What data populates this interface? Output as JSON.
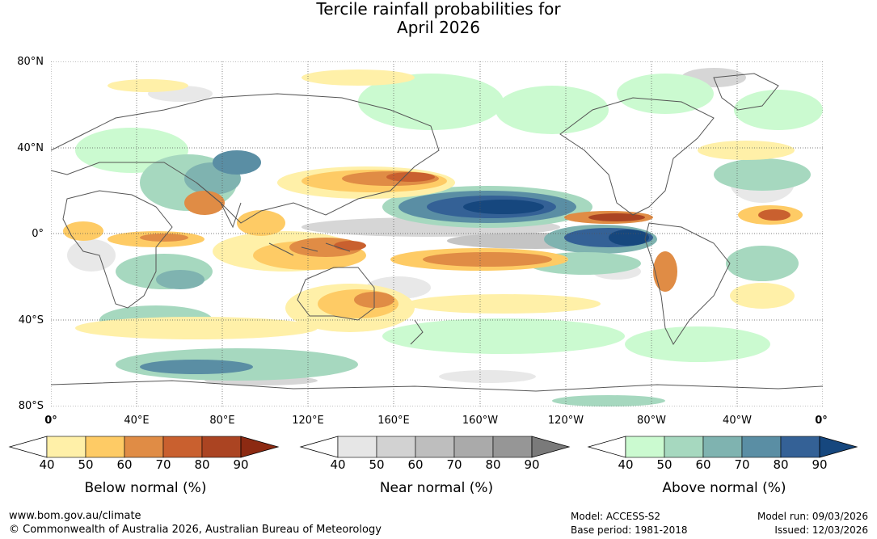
{
  "title": {
    "line1": "Tercile rainfall probabilities for",
    "line2": "April 2026"
  },
  "map": {
    "name": "Tercile rainfall probabilities world map",
    "lat_labels": [
      "80°N",
      "40°N",
      "0°",
      "40°S",
      "80°S"
    ],
    "lon_labels": [
      "0°",
      "40°E",
      "80°E",
      "120°E",
      "160°E",
      "160°W",
      "120°W",
      "80°W",
      "40°W",
      "0°"
    ],
    "colors": {
      "below": [
        "#fff0a8",
        "#fecb65",
        "#e08c45",
        "#c9602f",
        "#ab4422",
        "#8c2a12"
      ],
      "near": [
        "#e6e6e6",
        "#d2d2d2",
        "#bebebe",
        "#aaaaaa",
        "#969696",
        "#7a7a7a"
      ],
      "above": [
        "#cbfad0",
        "#a6d8bf",
        "#7fb3b0",
        "#5a8ea4",
        "#346196",
        "#16477e"
      ]
    }
  },
  "legends": [
    {
      "title": "Below normal (%)",
      "ticks": [
        "40",
        "50",
        "60",
        "70",
        "80",
        "90"
      ],
      "colors": [
        "#fff0a8",
        "#fecb65",
        "#e08c45",
        "#c9602f",
        "#ab4422",
        "#8c2a12"
      ]
    },
    {
      "title": "Near normal (%)",
      "ticks": [
        "40",
        "50",
        "60",
        "70",
        "80",
        "90"
      ],
      "colors": [
        "#e6e6e6",
        "#d2d2d2",
        "#bebebe",
        "#aaaaaa",
        "#969696",
        "#7a7a7a"
      ]
    },
    {
      "title": "Above normal (%)",
      "ticks": [
        "40",
        "50",
        "60",
        "70",
        "80",
        "90"
      ],
      "colors": [
        "#cbfad0",
        "#a6d8bf",
        "#7fb3b0",
        "#5a8ea4",
        "#346196",
        "#16477e"
      ]
    }
  ],
  "footer": {
    "website": "www.bom.gov.au/climate",
    "copyright": "© Commonwealth of Australia 2026, Australian Bureau of Meteorology",
    "model": "Model: ACCESS-S2",
    "base_period": "Base period: 1981-2018",
    "model_run": "Model run: 09/03/2026",
    "issued": "Issued: 12/03/2026"
  }
}
